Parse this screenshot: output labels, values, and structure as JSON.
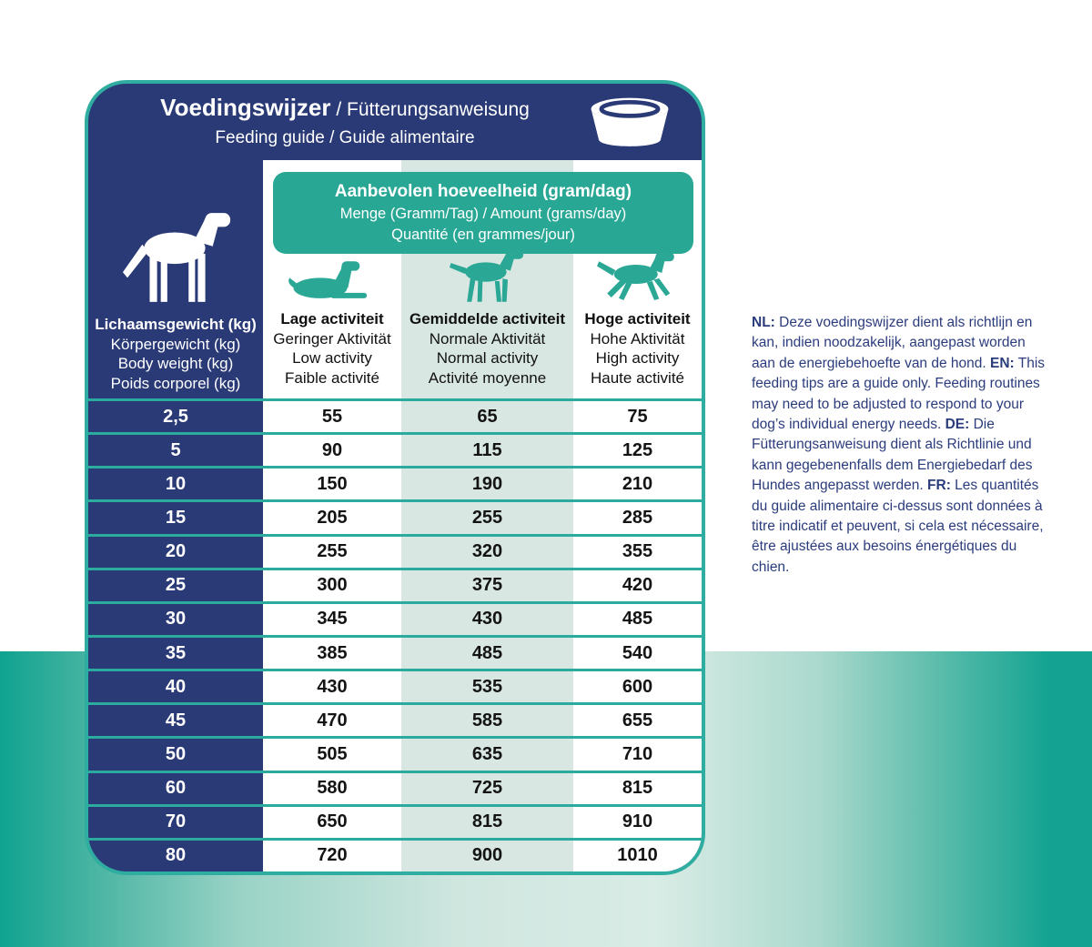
{
  "colors": {
    "card_navy": "#2a3a76",
    "teal_accent": "#29a795",
    "teal_border": "#2fada0",
    "column_tint": "#d9e7e2",
    "note_text": "#2b3c7c"
  },
  "header": {
    "title_bold": "Voedingswijzer",
    "title_regular": " / Fütterungsanweisung",
    "subtitle": "Feeding guide / Guide alimentaire"
  },
  "amount_box": {
    "line1": "Aanbevolen hoeveelheid (gram/dag)",
    "line2": "Menge (Gramm/Tag) / Amount (grams/day)",
    "line3": "Quantité (en grammes/jour)"
  },
  "weight_column": {
    "labels": [
      "Lichaamsgewicht (kg)",
      "Körpergewicht (kg)",
      "Body weight (kg)",
      "Poids corporel (kg)"
    ]
  },
  "activity_columns": [
    {
      "id": "low",
      "labels": [
        "Lage activiteit",
        "Geringer Aktivität",
        "Low activity",
        "Faible activité"
      ]
    },
    {
      "id": "normal",
      "labels": [
        "Gemiddelde activiteit",
        "Normale Aktivität",
        "Normal activity",
        "Activité moyenne"
      ]
    },
    {
      "id": "high",
      "labels": [
        "Hoge activiteit",
        "Hohe Aktivität",
        "High activity",
        "Haute activité"
      ]
    }
  ],
  "chart_data": {
    "type": "table",
    "title": "Aanbevolen hoeveelheid (gram/dag)",
    "row_header": "Lichaamsgewicht (kg)",
    "columns": [
      "Lage activiteit",
      "Gemiddelde activiteit",
      "Hoge activiteit"
    ],
    "weights_kg": [
      "2,5",
      "5",
      "10",
      "15",
      "20",
      "25",
      "30",
      "35",
      "40",
      "45",
      "50",
      "60",
      "70",
      "80"
    ],
    "values": [
      [
        55,
        65,
        75
      ],
      [
        90,
        115,
        125
      ],
      [
        150,
        190,
        210
      ],
      [
        205,
        255,
        285
      ],
      [
        255,
        320,
        355
      ],
      [
        300,
        375,
        420
      ],
      [
        345,
        430,
        485
      ],
      [
        385,
        485,
        540
      ],
      [
        430,
        535,
        600
      ],
      [
        470,
        585,
        655
      ],
      [
        505,
        635,
        710
      ],
      [
        580,
        725,
        815
      ],
      [
        650,
        815,
        910
      ],
      [
        720,
        900,
        1010
      ]
    ]
  },
  "note": {
    "segments": [
      {
        "label": "NL:",
        "text": " Deze voedingswijzer dient als richtlijn en kan, indien noodzakelijk, aangepast worden aan de energiebehoefte van de hond. "
      },
      {
        "label": "EN:",
        "text": " This feeding tips are a guide only. Feeding routines may need to be adjusted to respond to your dog’s individual energy needs. "
      },
      {
        "label": "DE:",
        "text": " Die Fütterungsanweisung dient als Richtlinie und kann gegebenenfalls dem Energiebedarf des Hundes angepasst werden. "
      },
      {
        "label": "FR:",
        "text": " Les quantités du guide alimentaire ci-dessus sont données à titre indicatif et peuvent, si cela est nécessaire, être ajustées aux besoins énergétiques du chien."
      }
    ]
  }
}
